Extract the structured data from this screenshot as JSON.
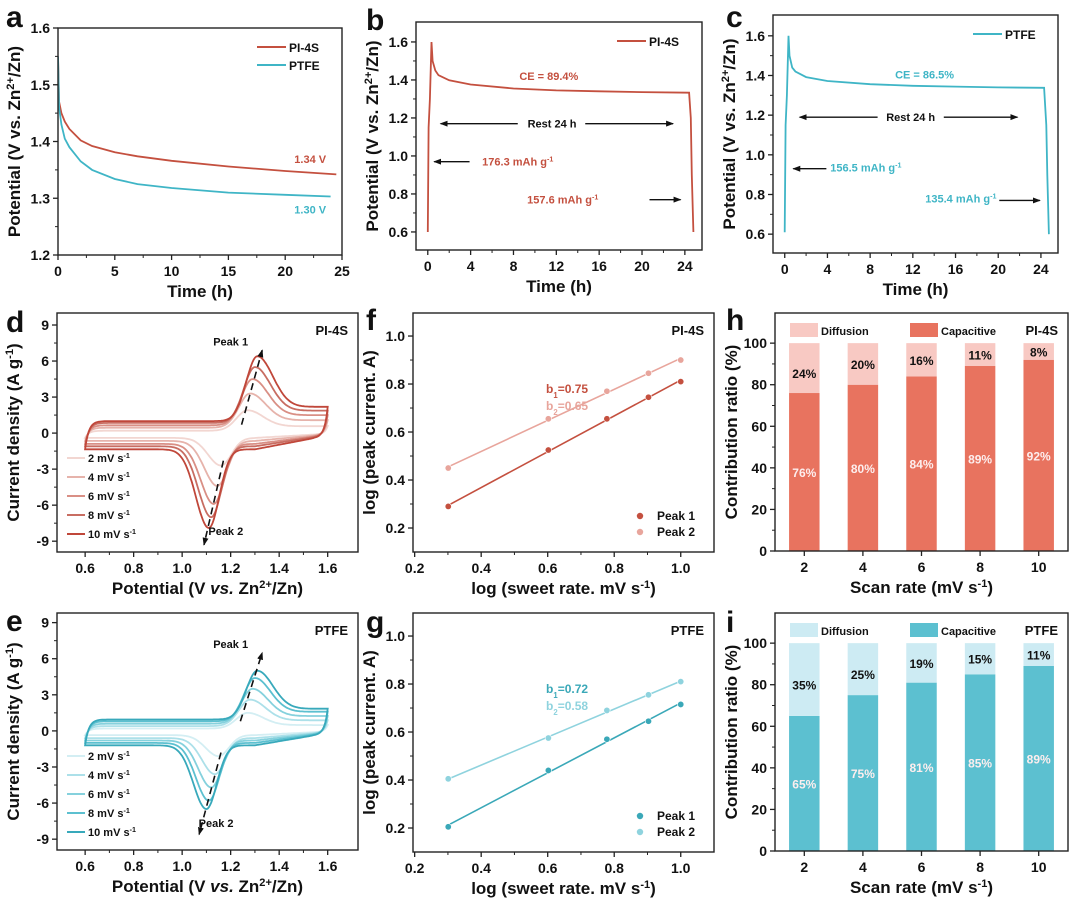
{
  "colors": {
    "pi4s": "#c4503f",
    "pi4s_light": "#e8a59c",
    "ptfe": "#3fb5c6",
    "ptfe_light": "#9ad9e3",
    "bar_cap_red": "#e8735f",
    "bar_dif_red": "#f8c9c3",
    "bar_cap_blue": "#5cc0d0",
    "bar_dif_blue": "#cdebf3"
  },
  "chart_data": [
    {
      "id": "a",
      "letter": "a",
      "type": "line",
      "xlabel": "Time (h)",
      "ylabel": "Potential (V vs. Zn^{2+}/Zn)",
      "xlim": [
        0,
        25
      ],
      "ylim": [
        1.2,
        1.6
      ],
      "xticks": [
        0,
        5,
        10,
        15,
        20,
        25
      ],
      "yticks": [
        1.2,
        1.3,
        1.4,
        1.5,
        1.6
      ],
      "ydec": 1,
      "series": [
        {
          "name": "PI-4S",
          "color": "#c4503f",
          "points": [
            [
              0,
              1.55
            ],
            [
              0.1,
              1.47
            ],
            [
              0.3,
              1.45
            ],
            [
              0.6,
              1.435
            ],
            [
              1,
              1.422
            ],
            [
              2,
              1.402
            ],
            [
              3,
              1.392
            ],
            [
              5,
              1.381
            ],
            [
              7,
              1.374
            ],
            [
              10,
              1.366
            ],
            [
              15,
              1.356
            ],
            [
              20,
              1.348
            ],
            [
              24.5,
              1.342
            ]
          ]
        },
        {
          "name": "PTFE",
          "color": "#3fb5c6",
          "points": [
            [
              0,
              1.55
            ],
            [
              0.1,
              1.46
            ],
            [
              0.3,
              1.43
            ],
            [
              0.6,
              1.405
            ],
            [
              1,
              1.39
            ],
            [
              2,
              1.365
            ],
            [
              3,
              1.35
            ],
            [
              5,
              1.334
            ],
            [
              7,
              1.325
            ],
            [
              10,
              1.318
            ],
            [
              15,
              1.31
            ],
            [
              20,
              1.306
            ],
            [
              24,
              1.303
            ]
          ]
        }
      ],
      "annotations": [
        {
          "text": "1.34 V",
          "x": 22.2,
          "y": 1.362,
          "color": "#c4503f"
        },
        {
          "text": "1.30 V",
          "x": 22.2,
          "y": 1.273,
          "color": "#3fb5c6"
        }
      ],
      "legend": [
        "PI-4S",
        "PTFE"
      ]
    },
    {
      "id": "b",
      "letter": "b",
      "type": "line",
      "xlabel": "Time (h)",
      "ylabel": "Potential (V vs. Zn^{2+}/Zn)",
      "xlim": [
        -1.1,
        25.6
      ],
      "ylim": [
        0.505,
        1.705
      ],
      "xticks": [
        0,
        4,
        8,
        12,
        16,
        20,
        24
      ],
      "yticks": [
        0.6,
        0.8,
        1.0,
        1.2,
        1.4,
        1.6
      ],
      "ydec": 1,
      "series": [
        {
          "name": "PI-4S",
          "color": "#c4503f",
          "points": [
            [
              0,
              0.6
            ],
            [
              0.08,
              1.15
            ],
            [
              0.2,
              1.3
            ],
            [
              0.35,
              1.6
            ],
            [
              0.45,
              1.5
            ],
            [
              0.7,
              1.45
            ],
            [
              1,
              1.425
            ],
            [
              2,
              1.398
            ],
            [
              4,
              1.376
            ],
            [
              8,
              1.355
            ],
            [
              12,
              1.345
            ],
            [
              16,
              1.34
            ],
            [
              20,
              1.336
            ],
            [
              24.4,
              1.333
            ],
            [
              24.55,
              1.2
            ],
            [
              24.65,
              0.9
            ],
            [
              24.8,
              0.6
            ]
          ]
        }
      ],
      "annotations": [
        {
          "text": "CE = 89.4%",
          "x": 11.3,
          "y": 1.4,
          "color": "#c4503f"
        },
        {
          "text": "Rest 24 h",
          "x": 11.6,
          "y": 1.15,
          "color": "#111"
        },
        {
          "text": "176.3 mAh g^{-1}",
          "x": 8.4,
          "y": 0.95,
          "color": "#c4503f"
        },
        {
          "text": "157.6 mAh g^{-1}",
          "x": 12.6,
          "y": 0.75,
          "color": "#c4503f"
        }
      ],
      "arrows": [
        [
          8.4,
          1.17,
          1.2,
          1.17
        ],
        [
          14.7,
          1.17,
          22.9,
          1.17
        ],
        [
          3.9,
          0.97,
          0.6,
          0.97
        ],
        [
          20.7,
          0.77,
          23.6,
          0.77
        ]
      ],
      "legend": [
        "PI-4S"
      ]
    },
    {
      "id": "c",
      "letter": "c",
      "type": "line",
      "xlabel": "Time (h)",
      "ylabel": "Potential (V vs. Zn^{2+}/Zn)",
      "xlim": [
        -1.1,
        25.6
      ],
      "ylim": [
        0.505,
        1.705
      ],
      "xticks": [
        0,
        4,
        8,
        12,
        16,
        20,
        24
      ],
      "yticks": [
        0.6,
        0.8,
        1.0,
        1.2,
        1.4,
        1.6
      ],
      "ydec": 1,
      "series": [
        {
          "name": "PTFE",
          "color": "#3fb5c6",
          "points": [
            [
              0,
              0.61
            ],
            [
              0.08,
              1.15
            ],
            [
              0.2,
              1.3
            ],
            [
              0.35,
              1.6
            ],
            [
              0.45,
              1.5
            ],
            [
              0.7,
              1.44
            ],
            [
              1,
              1.42
            ],
            [
              2,
              1.392
            ],
            [
              4,
              1.372
            ],
            [
              8,
              1.356
            ],
            [
              12,
              1.348
            ],
            [
              16,
              1.344
            ],
            [
              20,
              1.34
            ],
            [
              24.3,
              1.338
            ],
            [
              24.5,
              1.15
            ],
            [
              24.6,
              0.9
            ],
            [
              24.75,
              0.6
            ]
          ]
        }
      ],
      "annotations": [
        {
          "text": "CE = 86.5%",
          "x": 13.1,
          "y": 1.385,
          "color": "#3fb5c6"
        },
        {
          "text": "Rest 24 h",
          "x": 11.8,
          "y": 1.17,
          "color": "#111"
        },
        {
          "text": "156.5 mAh g^{-1}",
          "x": 7.6,
          "y": 0.915,
          "color": "#3fb5c6"
        },
        {
          "text": "135.4 mAh g^{-1}",
          "x": 16.5,
          "y": 0.76,
          "color": "#3fb5c6"
        }
      ],
      "arrows": [
        [
          8.7,
          1.19,
          1.4,
          1.19
        ],
        [
          14.9,
          1.19,
          21.8,
          1.19
        ],
        [
          3.9,
          0.93,
          0.8,
          0.93
        ],
        [
          20.1,
          0.77,
          23.9,
          0.77
        ]
      ],
      "legend": [
        "PTFE"
      ]
    },
    {
      "id": "d",
      "letter": "d",
      "type": "cv",
      "xlabel": "Potential (V *vs.* Zn^{2+}/Zn)",
      "ylabel": "Current density (A g^{-1})",
      "xlim": [
        0.484,
        1.725
      ],
      "ylim": [
        -9.9,
        10
      ],
      "xticks": [
        0.6,
        0.8,
        1.0,
        1.2,
        1.4,
        1.6
      ],
      "yticks": [
        -9,
        -6,
        -3,
        0,
        3,
        6,
        9
      ],
      "ydec": 0,
      "xdec": 1,
      "tag": "PI-4S",
      "series": [
        {
          "name": "2 mV s^{-1}",
          "color": "#f2d6d1",
          "base": 0.2,
          "cbase": 0.4,
          "p1": 1.9,
          "e1": 1.27,
          "p2": -2.7,
          "e2": 1.16
        },
        {
          "name": "4 mV s^{-1}",
          "color": "#e6b3ab",
          "base": 0.45,
          "cbase": 0.65,
          "p1": 3.3,
          "e1": 1.28,
          "p2": -4.4,
          "e2": 1.145
        },
        {
          "name": "6 mV s^{-1}",
          "color": "#d98f85",
          "base": 0.65,
          "cbase": 0.9,
          "p1": 4.5,
          "e1": 1.29,
          "p2": -5.9,
          "e2": 1.13
        },
        {
          "name": "8 mV s^{-1}",
          "color": "#c86d62",
          "base": 0.85,
          "cbase": 1.1,
          "p1": 5.5,
          "e1": 1.3,
          "p2": -7.0,
          "e2": 1.12
        },
        {
          "name": "10 mV s^{-1}",
          "color": "#c0473a",
          "base": 1.0,
          "cbase": 1.35,
          "p1": 6.4,
          "e1": 1.31,
          "p2": -7.9,
          "e2": 1.11
        }
      ],
      "annotations": [
        {
          "text": "Peak 1",
          "x": 1.2,
          "y": 7.3,
          "color": "#111"
        },
        {
          "text": "Peak 2",
          "x": 1.18,
          "y": -8.5,
          "color": "#111"
        }
      ],
      "dashed_arrows": [
        [
          1.245,
          0.7,
          1.33,
          6.9
        ],
        [
          1.17,
          -2.3,
          1.09,
          -9.3
        ]
      ]
    },
    {
      "id": "f",
      "letter": "f",
      "type": "scatterfit",
      "xlabel": "log (sweet rate. mV s^{-1})",
      "ylabel": "log (peak current. A)",
      "xlim": [
        0.195,
        1.1
      ],
      "ylim": [
        0.1,
        1.096
      ],
      "xticks": [
        0.2,
        0.4,
        0.6,
        0.8,
        1.0
      ],
      "yticks": [
        0.2,
        0.4,
        0.6,
        0.8,
        1.0
      ],
      "ydec": 1,
      "xdec": 1,
      "tag": "PI-4S",
      "series": [
        {
          "name": "Peak 1",
          "color": "#c4503f",
          "x": [
            0.301,
            0.602,
            0.778,
            0.903,
            1.0
          ],
          "y": [
            0.29,
            0.525,
            0.655,
            0.745,
            0.81
          ],
          "slope_label": "b_{1}=0.75"
        },
        {
          "name": "Peak 2",
          "color": "#e8a59c",
          "x": [
            0.301,
            0.602,
            0.778,
            0.903,
            1.0
          ],
          "y": [
            0.45,
            0.655,
            0.77,
            0.845,
            0.9
          ],
          "slope_label": "b_{2}=0.65"
        }
      ]
    },
    {
      "id": "h",
      "letter": "h",
      "type": "stackedbar",
      "xlabel": "Scan rate (mV s^{-1})",
      "ylabel": "Contribution ratio  (%)",
      "categories": [
        "2",
        "4",
        "6",
        "8",
        "10"
      ],
      "ylim": [
        0,
        114.5
      ],
      "yticks": [
        0,
        20,
        40,
        60,
        80,
        100
      ],
      "ydec": 0,
      "tag": "PI-4S",
      "series": [
        {
          "name": "Capacitive",
          "color": "#e8735f",
          "values": [
            76,
            80,
            84,
            89,
            92
          ],
          "labels": [
            "76%",
            "80%",
            "84%",
            "89%",
            "92%"
          ]
        },
        {
          "name": "Diffusion",
          "color": "#f8c9c3",
          "values": [
            24,
            20,
            16,
            11,
            8
          ],
          "labels": [
            "24%",
            "20%",
            "16%",
            "11%",
            "8%"
          ]
        }
      ]
    },
    {
      "id": "e",
      "letter": "e",
      "type": "cv",
      "xlabel": "Potential (V *vs.* Zn^{2+}/Zn)",
      "ylabel": "Current density (A g^{-1})",
      "xlim": [
        0.484,
        1.725
      ],
      "ylim": [
        -9.9,
        9.8
      ],
      "xticks": [
        0.6,
        0.8,
        1.0,
        1.2,
        1.4,
        1.6
      ],
      "yticks": [
        -9,
        -6,
        -3,
        0,
        3,
        6,
        9
      ],
      "ydec": 0,
      "xdec": 1,
      "tag": "PTFE",
      "series": [
        {
          "name": "2 mV s^{-1}",
          "color": "#d3eef3",
          "base": 0.2,
          "cbase": 0.35,
          "p1": 1.5,
          "e1": 1.27,
          "p2": -2.1,
          "e2": 1.15
        },
        {
          "name": "4 mV s^{-1}",
          "color": "#ace0e9",
          "base": 0.4,
          "cbase": 0.6,
          "p1": 2.6,
          "e1": 1.28,
          "p2": -3.6,
          "e2": 1.135
        },
        {
          "name": "6 mV s^{-1}",
          "color": "#85d1dd",
          "base": 0.6,
          "cbase": 0.8,
          "p1": 3.5,
          "e1": 1.29,
          "p2": -4.7,
          "e2": 1.12
        },
        {
          "name": "8 mV s^{-1}",
          "color": "#5cc0d0",
          "base": 0.8,
          "cbase": 1.0,
          "p1": 4.4,
          "e1": 1.3,
          "p2": -5.8,
          "e2": 1.11
        },
        {
          "name": "10 mV s^{-1}",
          "color": "#38a9bb",
          "base": 0.95,
          "cbase": 1.2,
          "p1": 5.0,
          "e1": 1.31,
          "p2": -6.5,
          "e2": 1.1
        }
      ],
      "annotations": [
        {
          "text": "Peak 1",
          "x": 1.2,
          "y": 6.9,
          "color": "#111"
        },
        {
          "text": "Peak 2",
          "x": 1.14,
          "y": -8.0,
          "color": "#111"
        }
      ],
      "dashed_arrows": [
        [
          1.24,
          0.8,
          1.33,
          6.5
        ],
        [
          1.16,
          -1.8,
          1.07,
          -8.6
        ]
      ]
    },
    {
      "id": "g",
      "letter": "g",
      "type": "scatterfit",
      "xlabel": "log (sweet rate. mV s^{-1})",
      "ylabel": "log (peak current. A)",
      "xlim": [
        0.195,
        1.1
      ],
      "ylim": [
        0.1,
        1.096
      ],
      "xticks": [
        0.2,
        0.4,
        0.6,
        0.8,
        1.0
      ],
      "yticks": [
        0.2,
        0.4,
        0.6,
        0.8,
        1.0
      ],
      "ydec": 1,
      "xdec": 1,
      "tag": "PTFE",
      "series": [
        {
          "name": "Peak 1",
          "color": "#3aa8b8",
          "x": [
            0.301,
            0.602,
            0.778,
            0.903,
            1.0
          ],
          "y": [
            0.205,
            0.44,
            0.57,
            0.645,
            0.715
          ],
          "slope_label": "b_{1}=0.72"
        },
        {
          "name": "Peak 2",
          "color": "#8fd3de",
          "x": [
            0.301,
            0.602,
            0.778,
            0.903,
            1.0
          ],
          "y": [
            0.405,
            0.575,
            0.69,
            0.755,
            0.81
          ],
          "slope_label": "b_{2}=0.58"
        }
      ]
    },
    {
      "id": "i",
      "letter": "i",
      "type": "stackedbar",
      "xlabel": "Scan rate (mV s^{-1})",
      "ylabel": "Contribution ratio  (%)",
      "categories": [
        "2",
        "4",
        "6",
        "8",
        "10"
      ],
      "ylim": [
        0,
        114.5
      ],
      "yticks": [
        0,
        20,
        40,
        60,
        80,
        100
      ],
      "ydec": 0,
      "tag": "PTFE",
      "series": [
        {
          "name": "Capacitive",
          "color": "#5cc0d0",
          "values": [
            65,
            75,
            81,
            85,
            89
          ],
          "labels": [
            "65%",
            "75%",
            "81%",
            "85%",
            "89%"
          ]
        },
        {
          "name": "Diffusion",
          "color": "#cdebf3",
          "values": [
            35,
            25,
            19,
            15,
            11
          ],
          "labels": [
            "35%",
            "25%",
            "19%",
            "15%",
            "11%"
          ]
        }
      ]
    }
  ]
}
